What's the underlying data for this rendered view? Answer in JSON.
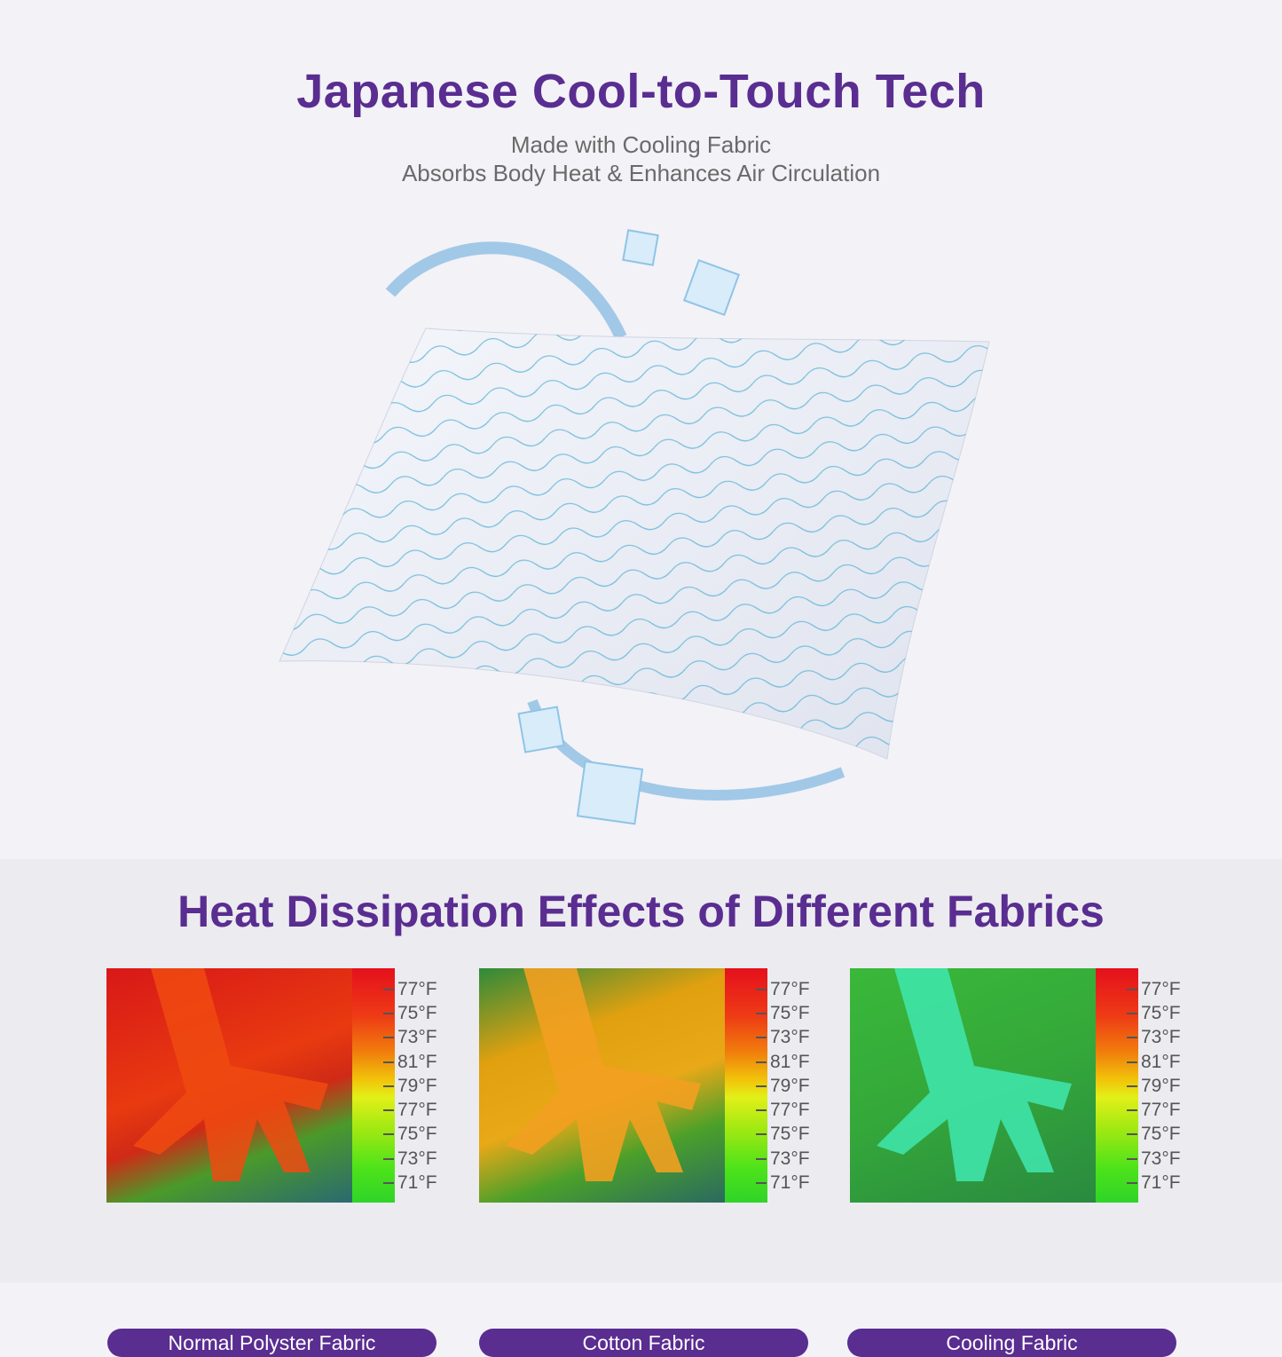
{
  "colors": {
    "accent": "#5a2d91",
    "subtitle": "#6a6a6a"
  },
  "header": {
    "title": "Japanese Cool-to-Touch Tech",
    "subtitle_lines": [
      "Made with Cooling Fabric",
      "Absorbs Body Heat & Enhances Air Circulation"
    ]
  },
  "comparison": {
    "title": "Heat Dissipation Effects of Different Fabrics",
    "scale_labels": [
      "77°F",
      "75°F",
      "73°F",
      "81°F",
      "79°F",
      "77°F",
      "75°F",
      "73°F",
      "71°F"
    ],
    "panels": [
      {
        "label": "Normal Polyster Fabric",
        "heat": "hot"
      },
      {
        "label": "Cotton Fabric",
        "heat": "warm"
      },
      {
        "label": "Cooling Fabric",
        "heat": "cool"
      }
    ]
  }
}
